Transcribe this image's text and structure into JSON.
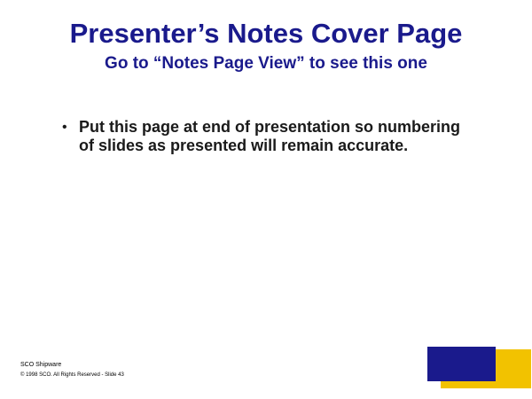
{
  "slide": {
    "title": "Presenter’s Notes Cover Page",
    "subtitle": "Go to “Notes Page View” to see this one",
    "bullets": [
      {
        "marker": "•",
        "text": "Put this page at end of presentation so numbering of slides as presented will remain accurate."
      }
    ],
    "footer": {
      "company": "SCO Shipware",
      "copyright": "© 1998 SCO. All Rights Reserved - Slide 43"
    },
    "colors": {
      "title": "#1a1a8c",
      "body_text": "#1a1a1a",
      "logo_blue": "#1a1a8c",
      "logo_yellow": "#f2c200",
      "background": "#ffffff"
    }
  }
}
